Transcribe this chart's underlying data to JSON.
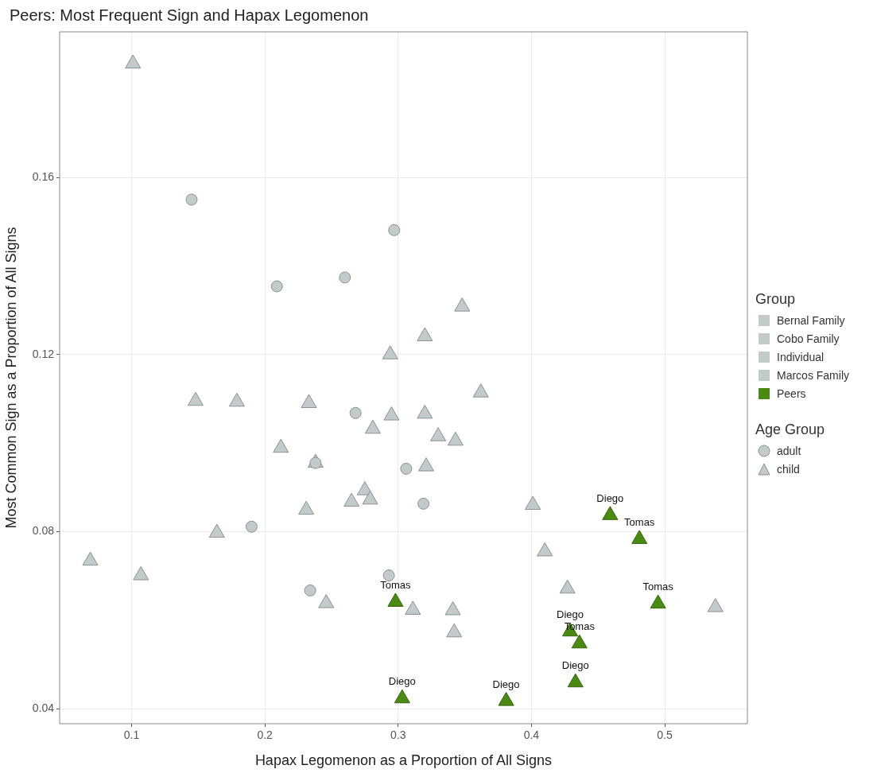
{
  "chart_data": {
    "type": "scatter",
    "title": "Peers: Most Frequent Sign and Hapax Legomenon",
    "xlabel": "Hapax Legomenon as a Proportion of All Signs",
    "ylabel": "Most Common Sign as a Proportion of All Signs",
    "legend_title": [
      "Group",
      "Age Group"
    ],
    "legend": "right",
    "grid": true,
    "marker": "triangle",
    "xlim": [
      0.046,
      0.562
    ],
    "xticks": [
      0.1,
      0.2,
      0.3,
      0.4,
      0.5
    ],
    "ylim": [
      0.0366,
      0.1929
    ],
    "yticks": [
      0.04,
      0.08,
      0.12,
      0.16
    ],
    "series": [
      {
        "name": "Bernal Family",
        "color": "#c2cacb"
      },
      {
        "name": "Cobo Family",
        "color": "#c2cacb"
      },
      {
        "name": "Individual",
        "color": "#c2cacb"
      },
      {
        "name": "Marcos Family",
        "color": "#c2cacb"
      },
      {
        "name": "adult",
        "color": "#c2cacb",
        "marker": "circle",
        "x": [
          0.145,
          0.209,
          0.26,
          0.297,
          0.268,
          0.238,
          0.306,
          0.19,
          0.293,
          0.234,
          0.319
        ],
        "values": [
          0.155,
          0.1354,
          0.1374,
          0.1481,
          0.1068,
          0.0955,
          0.0942,
          0.0811,
          0.0701,
          0.0667,
          0.0863
        ]
      },
      {
        "name": "child",
        "color": "#c2cacb",
        "marker": "triangle",
        "x": [
          0.101,
          0.294,
          0.148,
          0.179,
          0.233,
          0.295,
          0.281,
          0.212,
          0.238,
          0.275,
          0.265,
          0.279,
          0.231,
          0.164,
          0.069,
          0.107,
          0.246,
          0.348,
          0.32,
          0.362,
          0.32,
          0.33,
          0.343,
          0.321,
          0.401,
          0.41,
          0.427,
          0.538,
          0.311,
          0.341,
          0.342
        ],
        "values": [
          0.1857,
          0.12,
          0.1095,
          0.1093,
          0.109,
          0.1062,
          0.1032,
          0.0989,
          0.0955,
          0.0893,
          0.0867,
          0.0872,
          0.0849,
          0.0797,
          0.0734,
          0.0701,
          0.0638,
          0.1308,
          0.1241,
          0.1114,
          0.1066,
          0.1015,
          0.1005,
          0.0947,
          0.086,
          0.0755,
          0.0671,
          0.0629,
          0.0623,
          0.0622,
          0.0572
        ]
      },
      {
        "name": "Peers",
        "color": "#4a8a12",
        "x": [
          0.298,
          0.303,
          0.459,
          0.481,
          0.495,
          0.429,
          0.436,
          0.433,
          0.381
        ],
        "values": [
          0.0641,
          0.0423,
          0.0837,
          0.0783,
          0.0637,
          0.0574,
          0.0547,
          0.0459,
          0.0417
        ],
        "value_labels": [
          "Tomas",
          "Diego",
          "Diego",
          "Tomas",
          "Tomas",
          "Diego",
          "Tomas",
          "Diego",
          "Diego"
        ]
      }
    ]
  }
}
